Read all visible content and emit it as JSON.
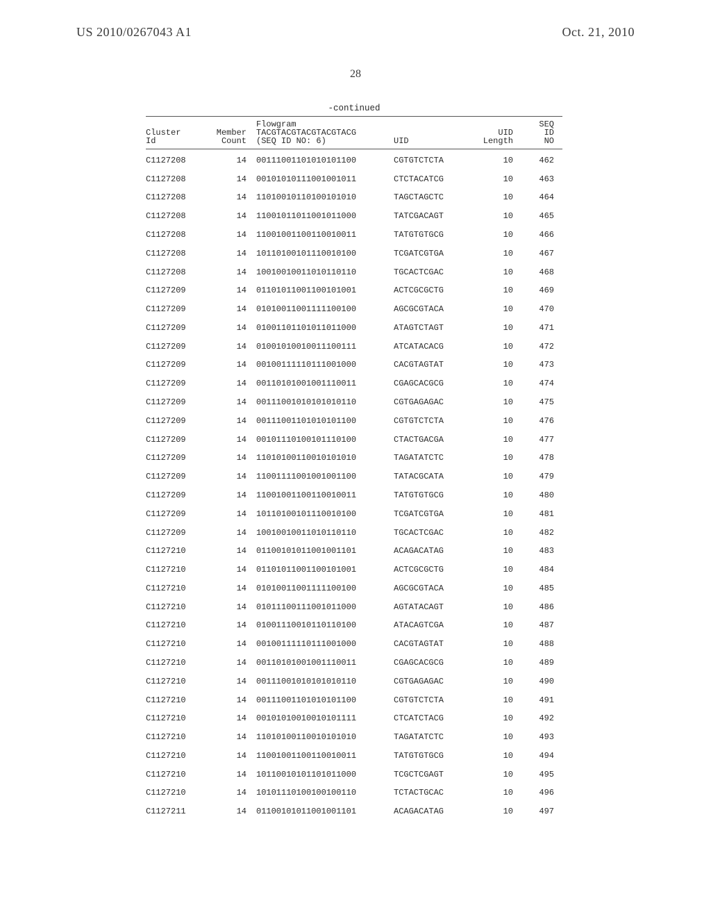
{
  "header": {
    "left": "US 2010/0267043 A1",
    "right": "Oct. 21, 2010",
    "page_number": "28"
  },
  "table": {
    "continued_label": "-continued",
    "columns": {
      "cluster_l1": "Cluster",
      "cluster_l2": "Id",
      "count_l1": "Member",
      "count_l2": "Count",
      "flow_l1": "Flowgram",
      "flow_l2": "TACGTACGTACGTACGTACG",
      "flow_l3": "(SEQ ID NO: 6)",
      "uid": "UID",
      "len_l1": "UID",
      "len_l2": "Length",
      "seq_l1": "SEQ",
      "seq_l2": "ID",
      "seq_l3": "NO"
    },
    "rows": [
      {
        "cluster": "C1127208",
        "count": "14",
        "flow": "00111001101010101100",
        "uid": "CGTGTCTCTA",
        "len": "10",
        "seq": "462"
      },
      {
        "cluster": "C1127208",
        "count": "14",
        "flow": "00101010111001001011",
        "uid": "CTCTACATCG",
        "len": "10",
        "seq": "463"
      },
      {
        "cluster": "C1127208",
        "count": "14",
        "flow": "11010010110100101010",
        "uid": "TAGCTAGCTC",
        "len": "10",
        "seq": "464"
      },
      {
        "cluster": "C1127208",
        "count": "14",
        "flow": "11001011011001011000",
        "uid": "TATCGACAGT",
        "len": "10",
        "seq": "465"
      },
      {
        "cluster": "C1127208",
        "count": "14",
        "flow": "11001001100110010011",
        "uid": "TATGTGTGCG",
        "len": "10",
        "seq": "466"
      },
      {
        "cluster": "C1127208",
        "count": "14",
        "flow": "10110100101110010100",
        "uid": "TCGATCGTGA",
        "len": "10",
        "seq": "467"
      },
      {
        "cluster": "C1127208",
        "count": "14",
        "flow": "10010010011010110110",
        "uid": "TGCACTCGAC",
        "len": "10",
        "seq": "468"
      },
      {
        "cluster": "C1127209",
        "count": "14",
        "flow": "01101011001100101001",
        "uid": "ACTCGCGCTG",
        "len": "10",
        "seq": "469"
      },
      {
        "cluster": "C1127209",
        "count": "14",
        "flow": "01010011001111100100",
        "uid": "AGCGCGTACA",
        "len": "10",
        "seq": "470"
      },
      {
        "cluster": "C1127209",
        "count": "14",
        "flow": "01001101101011011000",
        "uid": "ATAGTCTAGT",
        "len": "10",
        "seq": "471"
      },
      {
        "cluster": "C1127209",
        "count": "14",
        "flow": "01001010010011100111",
        "uid": "ATCATACACG",
        "len": "10",
        "seq": "472"
      },
      {
        "cluster": "C1127209",
        "count": "14",
        "flow": "00100111110111001000",
        "uid": "CACGTAGTAT",
        "len": "10",
        "seq": "473"
      },
      {
        "cluster": "C1127209",
        "count": "14",
        "flow": "00110101001001110011",
        "uid": "CGAGCACGCG",
        "len": "10",
        "seq": "474"
      },
      {
        "cluster": "C1127209",
        "count": "14",
        "flow": "00111001010101010110",
        "uid": "CGTGAGAGAC",
        "len": "10",
        "seq": "475"
      },
      {
        "cluster": "C1127209",
        "count": "14",
        "flow": "00111001101010101100",
        "uid": "CGTGTCTCTA",
        "len": "10",
        "seq": "476"
      },
      {
        "cluster": "C1127209",
        "count": "14",
        "flow": "00101110100101110100",
        "uid": "CTACTGACGA",
        "len": "10",
        "seq": "477"
      },
      {
        "cluster": "C1127209",
        "count": "14",
        "flow": "11010100110010101010",
        "uid": "TAGATATCTC",
        "len": "10",
        "seq": "478"
      },
      {
        "cluster": "C1127209",
        "count": "14",
        "flow": "11001111001001001100",
        "uid": "TATACGCATA",
        "len": "10",
        "seq": "479"
      },
      {
        "cluster": "C1127209",
        "count": "14",
        "flow": "11001001100110010011",
        "uid": "TATGTGTGCG",
        "len": "10",
        "seq": "480"
      },
      {
        "cluster": "C1127209",
        "count": "14",
        "flow": "10110100101110010100",
        "uid": "TCGATCGTGA",
        "len": "10",
        "seq": "481"
      },
      {
        "cluster": "C1127209",
        "count": "14",
        "flow": "10010010011010110110",
        "uid": "TGCACTCGAC",
        "len": "10",
        "seq": "482"
      },
      {
        "cluster": "C1127210",
        "count": "14",
        "flow": "01100101011001001101",
        "uid": "ACAGACATAG",
        "len": "10",
        "seq": "483"
      },
      {
        "cluster": "C1127210",
        "count": "14",
        "flow": "01101011001100101001",
        "uid": "ACTCGCGCTG",
        "len": "10",
        "seq": "484"
      },
      {
        "cluster": "C1127210",
        "count": "14",
        "flow": "01010011001111100100",
        "uid": "AGCGCGTACA",
        "len": "10",
        "seq": "485"
      },
      {
        "cluster": "C1127210",
        "count": "14",
        "flow": "01011100111001011000",
        "uid": "AGTATACAGT",
        "len": "10",
        "seq": "486"
      },
      {
        "cluster": "C1127210",
        "count": "14",
        "flow": "01001110010110110100",
        "uid": "ATACAGTCGA",
        "len": "10",
        "seq": "487"
      },
      {
        "cluster": "C1127210",
        "count": "14",
        "flow": "00100111110111001000",
        "uid": "CACGTAGTAT",
        "len": "10",
        "seq": "488"
      },
      {
        "cluster": "C1127210",
        "count": "14",
        "flow": "00110101001001110011",
        "uid": "CGAGCACGCG",
        "len": "10",
        "seq": "489"
      },
      {
        "cluster": "C1127210",
        "count": "14",
        "flow": "00111001010101010110",
        "uid": "CGTGAGAGAC",
        "len": "10",
        "seq": "490"
      },
      {
        "cluster": "C1127210",
        "count": "14",
        "flow": "00111001101010101100",
        "uid": "CGTGTCTCTA",
        "len": "10",
        "seq": "491"
      },
      {
        "cluster": "C1127210",
        "count": "14",
        "flow": "00101010010010101111",
        "uid": "CTCATCTACG",
        "len": "10",
        "seq": "492"
      },
      {
        "cluster": "C1127210",
        "count": "14",
        "flow": "11010100110010101010",
        "uid": "TAGATATCTC",
        "len": "10",
        "seq": "493"
      },
      {
        "cluster": "C1127210",
        "count": "14",
        "flow": "11001001100110010011",
        "uid": "TATGTGTGCG",
        "len": "10",
        "seq": "494"
      },
      {
        "cluster": "C1127210",
        "count": "14",
        "flow": "10110010101101011000",
        "uid": "TCGCTCGAGT",
        "len": "10",
        "seq": "495"
      },
      {
        "cluster": "C1127210",
        "count": "14",
        "flow": "10101110100100100110",
        "uid": "TCTACTGCAC",
        "len": "10",
        "seq": "496"
      },
      {
        "cluster": "C1127211",
        "count": "14",
        "flow": "01100101011001001101",
        "uid": "ACAGACATAG",
        "len": "10",
        "seq": "497"
      }
    ]
  }
}
